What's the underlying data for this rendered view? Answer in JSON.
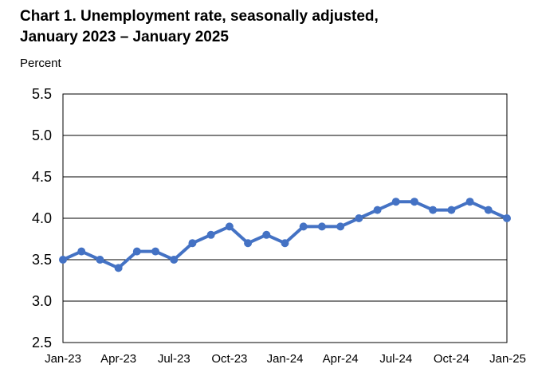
{
  "chart_data": {
    "type": "line",
    "title_line1": "Chart 1. Unemployment rate, seasonally adjusted,",
    "title_line2": "January 2023 – January 2025",
    "ylabel": "Percent",
    "xlabel": "",
    "ylim": [
      2.5,
      5.5
    ],
    "yticks": [
      "2.5",
      "3.0",
      "3.5",
      "4.0",
      "4.5",
      "5.0",
      "5.5"
    ],
    "xtick_labels": [
      "Jan-23",
      "Apr-23",
      "Jul-23",
      "Oct-23",
      "Jan-24",
      "Apr-24",
      "Jul-24",
      "Oct-24",
      "Jan-25"
    ],
    "xtick_every": 3,
    "grid": "horizontal",
    "line_color": "#4472C4",
    "x": [
      "Jan-23",
      "Feb-23",
      "Mar-23",
      "Apr-23",
      "May-23",
      "Jun-23",
      "Jul-23",
      "Aug-23",
      "Sep-23",
      "Oct-23",
      "Nov-23",
      "Dec-23",
      "Jan-24",
      "Feb-24",
      "Mar-24",
      "Apr-24",
      "May-24",
      "Jun-24",
      "Jul-24",
      "Aug-24",
      "Sep-24",
      "Oct-24",
      "Nov-24",
      "Dec-24",
      "Jan-25"
    ],
    "values": [
      3.5,
      3.6,
      3.5,
      3.4,
      3.6,
      3.6,
      3.5,
      3.7,
      3.8,
      3.9,
      3.7,
      3.8,
      3.7,
      3.9,
      3.9,
      3.9,
      4.0,
      4.1,
      4.2,
      4.2,
      4.1,
      4.1,
      4.2,
      4.1,
      4.0
    ]
  }
}
